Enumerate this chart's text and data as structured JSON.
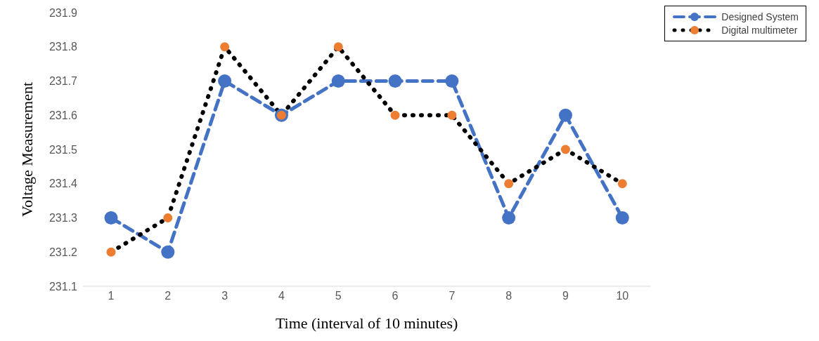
{
  "chart_data": {
    "type": "line",
    "xlabel": "Time  (interval  of 10 minutes)",
    "ylabel": "Voltage  Measurement",
    "categories": [
      "1",
      "2",
      "3",
      "4",
      "5",
      "6",
      "7",
      "8",
      "9",
      "10"
    ],
    "series": [
      {
        "name": "Designed System",
        "color": "#4472c4",
        "colors": [
          "#4472c4",
          "#4472c4",
          "#4472c4",
          "#4472c4",
          "#4472c4",
          "#4472c4",
          "#4472c4",
          "#4472c4",
          "#4472c4",
          "#4472c4"
        ],
        "line_style": "dashed",
        "marker": "circle",
        "values": [
          231.3,
          231.2,
          231.7,
          231.6,
          231.7,
          231.7,
          231.7,
          231.3,
          231.6,
          231.3
        ]
      },
      {
        "name": "Digital multimeter",
        "color": "#000000",
        "colors": [
          "#ed7d31",
          "#ed7d31",
          "#ed7d31",
          "#ed7d31",
          "#ed7d31",
          "#ed7d31",
          "#ed7d31",
          "#ed7d31",
          "#ed7d31",
          "#ed7d31"
        ],
        "line_style": "dotted",
        "marker": "circle",
        "values": [
          231.2,
          231.3,
          231.8,
          231.6,
          231.8,
          231.6,
          231.6,
          231.4,
          231.5,
          231.4
        ]
      }
    ],
    "ylim": [
      231.1,
      231.9
    ],
    "yticks": [
      231.1,
      231.2,
      231.3,
      231.4,
      231.5,
      231.6,
      231.7,
      231.8,
      231.9
    ],
    "grid": false,
    "legend": "top right"
  }
}
